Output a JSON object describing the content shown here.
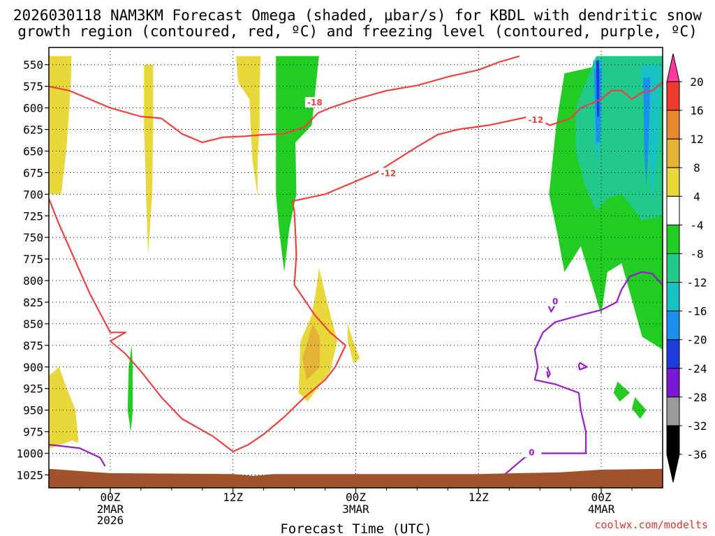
{
  "title_lines": [
    "2026030118 NAM3KM Forecast Omega (shaded, μbar/s) for KBDL with dendritic snow",
    "growth region (contoured, red, ºC) and freezing level (contoured, purple, ºC)"
  ],
  "credit": "coolwx.com/modelts",
  "chart_data": {
    "type": "heatmap",
    "title": "2026030118 NAM3KM Forecast Omega (shaded, μbar/s) for KBDL with dendritic snow growth region (contoured, red, ºC) and freezing level (contoured, purple, ºC)",
    "xlabel": "Forecast Time (UTC)",
    "ylabel": "",
    "x_range_hours": [
      -6,
      54
    ],
    "y_scale": "pressure (reversed, hPa)",
    "ylim": [
      1040,
      530
    ],
    "grid": "dotted",
    "x_ticks": [
      {
        "hour": 0,
        "label": "00Z",
        "sub": [
          "2MAR",
          "2026"
        ]
      },
      {
        "hour": 12,
        "label": "12Z",
        "sub": []
      },
      {
        "hour": 24,
        "label": "00Z",
        "sub": [
          "3MAR"
        ]
      },
      {
        "hour": 36,
        "label": "12Z",
        "sub": []
      },
      {
        "hour": 48,
        "label": "00Z",
        "sub": [
          "4MAR"
        ]
      }
    ],
    "x_minor_hours": [
      -3,
      3,
      6,
      9,
      15,
      18,
      21,
      27,
      30,
      33,
      39,
      42,
      45,
      51
    ],
    "y_ticks": [
      550,
      575,
      600,
      625,
      650,
      675,
      700,
      725,
      750,
      775,
      800,
      825,
      850,
      875,
      900,
      925,
      950,
      975,
      1000,
      1025
    ],
    "colorbar": {
      "ticks": [
        "20",
        "16",
        "12",
        "8",
        "4",
        "-4",
        "-8",
        "-12",
        "-16",
        "-20",
        "-24",
        "-28",
        "-32",
        "-36"
      ],
      "colors": [
        "#ff3b9e",
        "#ee3a2e",
        "#e8872e",
        "#e3b236",
        "#e8d83c",
        "#ffffff",
        "#22cc22",
        "#21c98a",
        "#18c2c2",
        "#1a8fef",
        "#1e3cdd",
        "#7a18d2",
        "#9a9a9a",
        "#000000"
      ]
    },
    "omega_regions": [
      {
        "category": "4 to 8",
        "color": "#e8d83c",
        "points": [
          [
            -6,
            540
          ],
          [
            -3.8,
            540
          ],
          [
            -3.8,
            560
          ],
          [
            -4,
            600
          ],
          [
            -4.3,
            650
          ],
          [
            -4.8,
            700
          ],
          [
            -6,
            700
          ]
        ]
      },
      {
        "category": "4 to 8",
        "color": "#e8d83c",
        "points": [
          [
            3.3,
            550
          ],
          [
            4.2,
            550
          ],
          [
            4.2,
            620
          ],
          [
            4.1,
            700
          ],
          [
            3.7,
            770
          ],
          [
            3.5,
            700
          ],
          [
            3.3,
            620
          ]
        ]
      },
      {
        "category": "4 to 8",
        "color": "#e8d83c",
        "points": [
          [
            12.3,
            540
          ],
          [
            14.7,
            540
          ],
          [
            14.6,
            580
          ],
          [
            14.6,
            620
          ],
          [
            14.4,
            660
          ],
          [
            14.4,
            702
          ],
          [
            13.9,
            660
          ],
          [
            13.6,
            590
          ],
          [
            12.5,
            570
          ]
        ]
      },
      {
        "category": "4 to 8",
        "color": "#e8d83c",
        "points": [
          [
            -6,
            910
          ],
          [
            -5,
            900
          ],
          [
            -4.4,
            920
          ],
          [
            -3.4,
            950
          ],
          [
            -3.1,
            988
          ],
          [
            -3.7,
            985
          ],
          [
            -6,
            995
          ]
        ]
      },
      {
        "category": "4 to 8",
        "color": "#e8d83c",
        "points": [
          [
            20.4,
            785
          ],
          [
            21.1,
            820
          ],
          [
            22.2,
            870
          ],
          [
            21.5,
            905
          ],
          [
            19.3,
            940
          ],
          [
            18.4,
            930
          ],
          [
            18.6,
            870
          ],
          [
            19.7,
            840
          ],
          [
            20.2,
            805
          ]
        ]
      },
      {
        "category": "4 to 8",
        "color": "#e8d83c",
        "points": [
          [
            23.2,
            850
          ],
          [
            23.9,
            875
          ],
          [
            24.4,
            890
          ],
          [
            23.8,
            896
          ],
          [
            23.2,
            870
          ]
        ]
      },
      {
        "category": "8 to 12",
        "color": "#e3b236",
        "points": [
          [
            19.8,
            850
          ],
          [
            20.5,
            865
          ],
          [
            20.5,
            900
          ],
          [
            19.2,
            915
          ],
          [
            18.8,
            890
          ]
        ]
      },
      {
        "category": "-4 to -8",
        "color": "#22cc22",
        "points": [
          [
            16.2,
            540
          ],
          [
            20.4,
            540
          ],
          [
            19.7,
            620
          ],
          [
            18.1,
            640
          ],
          [
            18.2,
            700
          ],
          [
            17.5,
            740
          ],
          [
            17,
            790
          ],
          [
            16.5,
            740
          ],
          [
            16.2,
            700
          ]
        ]
      },
      {
        "category": "-4 to -8",
        "color": "#22cc22",
        "points": [
          [
            2.1,
            875
          ],
          [
            2.2,
            900
          ],
          [
            2.2,
            952
          ],
          [
            2,
            975
          ],
          [
            1.7,
            950
          ],
          [
            1.8,
            900
          ]
        ]
      },
      {
        "category": "-4 to -8",
        "color": "#22cc22",
        "points": [
          [
            44.4,
            560
          ],
          [
            52,
            540
          ],
          [
            54,
            540
          ],
          [
            54,
            880
          ],
          [
            52,
            865
          ],
          [
            50,
            780
          ],
          [
            48.6,
            790
          ],
          [
            48,
            840
          ],
          [
            46,
            760
          ],
          [
            44.4,
            790
          ],
          [
            43.7,
            745
          ],
          [
            42.9,
            700
          ],
          [
            43.6,
            620
          ]
        ]
      },
      {
        "category": "-4 to -8",
        "color": "#22cc22",
        "points": [
          [
            49.6,
            917
          ],
          [
            50.8,
            930
          ],
          [
            49.8,
            940
          ],
          [
            49.2,
            930
          ]
        ]
      },
      {
        "category": "-4 to -8",
        "color": "#22cc22",
        "points": [
          [
            51.3,
            935
          ],
          [
            52.4,
            950
          ],
          [
            51.8,
            960
          ],
          [
            51,
            948
          ]
        ]
      },
      {
        "category": "-8 to -12",
        "color": "#21c98a",
        "points": [
          [
            45.5,
            600
          ],
          [
            47.5,
            540
          ],
          [
            54,
            540
          ],
          [
            54,
            725
          ],
          [
            52,
            730
          ],
          [
            50,
            700
          ],
          [
            48.6,
            705
          ],
          [
            47.5,
            720
          ],
          [
            46.4,
            690
          ],
          [
            45.5,
            650
          ]
        ]
      },
      {
        "category": "-12 to -16",
        "color": "#18c2c2",
        "points": [
          [
            47.2,
            545
          ],
          [
            48.2,
            545
          ],
          [
            48,
            620
          ],
          [
            47.6,
            670
          ],
          [
            47.3,
            640
          ]
        ]
      },
      {
        "category": "-12 to -16",
        "color": "#18c2c2",
        "points": [
          [
            51.8,
            550
          ],
          [
            53.8,
            550
          ],
          [
            53.6,
            640
          ],
          [
            53,
            705
          ],
          [
            52.6,
            640
          ]
        ]
      },
      {
        "category": "-16 to -20",
        "color": "#1a8fef",
        "points": [
          [
            47.3,
            555
          ],
          [
            48,
            555
          ],
          [
            47.9,
            640
          ],
          [
            47.5,
            640
          ]
        ]
      },
      {
        "category": "-16 to -20",
        "color": "#1a8fef",
        "points": [
          [
            52.1,
            565
          ],
          [
            52.8,
            565
          ],
          [
            52.6,
            650
          ],
          [
            52.4,
            690
          ],
          [
            52.2,
            650
          ]
        ]
      },
      {
        "category": "-20 to -24",
        "color": "#1e3cdd",
        "points": [
          [
            47.5,
            545
          ],
          [
            47.8,
            545
          ],
          [
            47.8,
            610
          ],
          [
            47.6,
            610
          ]
        ]
      }
    ],
    "red_contours": [
      {
        "label": "-18",
        "points": [
          [
            -6,
            575
          ],
          [
            -4,
            580
          ],
          [
            -2,
            590
          ],
          [
            0,
            600
          ],
          [
            3,
            610
          ],
          [
            5,
            612
          ],
          [
            7,
            630
          ],
          [
            9,
            640
          ],
          [
            11,
            634
          ],
          [
            13,
            633
          ],
          [
            15,
            631
          ],
          [
            17,
            630
          ],
          [
            19,
            622
          ],
          [
            20.3,
            606
          ],
          [
            21.5,
            600
          ],
          [
            22.5,
            596
          ],
          [
            24,
            590
          ],
          [
            27,
            580
          ],
          [
            30,
            574
          ],
          [
            33,
            564
          ],
          [
            36,
            556
          ],
          [
            38,
            547
          ],
          [
            40,
            540
          ]
        ]
      },
      {
        "label": "-12",
        "points": [
          [
            -6,
            705
          ],
          [
            -5,
            735
          ],
          [
            -3.5,
            775
          ],
          [
            -2,
            815
          ],
          [
            0,
            860
          ],
          [
            1.5,
            860
          ],
          [
            0,
            870
          ],
          [
            1.5,
            885
          ],
          [
            3,
            905
          ],
          [
            5,
            935
          ],
          [
            7,
            960
          ],
          [
            10,
            980
          ],
          [
            12,
            998
          ],
          [
            13.5,
            990
          ],
          [
            15,
            978
          ],
          [
            17,
            958
          ],
          [
            19,
            935
          ],
          [
            21,
            915
          ],
          [
            22,
            900
          ],
          [
            23,
            875
          ],
          [
            21.5,
            860
          ],
          [
            20,
            840
          ],
          [
            18,
            805
          ],
          [
            18.2,
            770
          ],
          [
            18,
            720
          ],
          [
            17.8,
            708
          ],
          [
            21,
            700
          ],
          [
            24,
            685
          ],
          [
            26,
            675
          ],
          [
            28,
            660
          ],
          [
            30,
            645
          ],
          [
            32,
            631
          ],
          [
            34,
            625
          ],
          [
            37,
            620
          ],
          [
            41,
            610
          ],
          [
            43,
            620
          ],
          [
            45,
            612
          ],
          [
            46,
            600
          ],
          [
            48,
            590
          ],
          [
            49,
            580
          ],
          [
            50,
            580
          ],
          [
            51,
            590
          ],
          [
            52,
            582
          ],
          [
            53,
            580
          ],
          [
            54,
            570
          ]
        ]
      }
    ],
    "purple_contours": [
      {
        "label": "0",
        "points": [
          [
            -6,
            990
          ],
          [
            -3,
            994
          ],
          [
            -1,
            1005
          ],
          [
            -0.5,
            1015
          ]
        ]
      },
      {
        "label": "0",
        "points": [
          [
            38.5,
            1025
          ],
          [
            39,
            1020
          ],
          [
            40.5,
            1005
          ],
          [
            41.5,
            1000
          ],
          [
            44,
            1000
          ],
          [
            46.5,
            1000
          ],
          [
            46.5,
            975
          ],
          [
            46,
            950
          ],
          [
            45.8,
            930
          ],
          [
            43.5,
            920
          ],
          [
            41.5,
            915
          ],
          [
            41.8,
            900
          ],
          [
            41.5,
            880
          ],
          [
            42.3,
            860
          ],
          [
            43.5,
            848
          ],
          [
            46,
            840
          ],
          [
            48,
            834
          ],
          [
            49.5,
            825
          ],
          [
            50,
            810
          ],
          [
            50.8,
            795
          ],
          [
            52,
            790
          ],
          [
            53,
            792
          ],
          [
            54,
            805
          ]
        ]
      },
      {
        "label": "",
        "points": [
          [
            43.1,
            820
          ],
          [
            43.4,
            830
          ],
          [
            43.1,
            836
          ],
          [
            42.8,
            828
          ],
          [
            43.1,
            820
          ]
        ]
      },
      {
        "label": "",
        "points": [
          [
            45.9,
            895
          ],
          [
            46.6,
            900
          ],
          [
            45.9,
            903
          ],
          [
            45.8,
            899
          ],
          [
            45.9,
            895
          ]
        ]
      },
      {
        "label": "",
        "points": [
          [
            42.7,
            900
          ],
          [
            43,
            908
          ],
          [
            42.8,
            912
          ],
          [
            42.7,
            905
          ]
        ]
      }
    ],
    "surface_color": "#a0522d"
  }
}
